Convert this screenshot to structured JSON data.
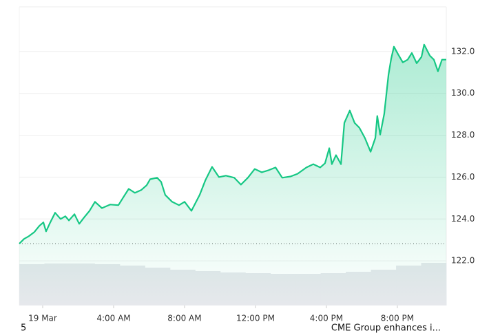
{
  "chart_data": {
    "type": "line",
    "x": [
      -1.32,
      -1.05,
      -0.78,
      -0.47,
      -0.19,
      0.04,
      0.19,
      0.39,
      0.7,
      1.01,
      1.28,
      1.48,
      1.79,
      2.06,
      2.33,
      2.64,
      2.95,
      3.34,
      3.81,
      4.27,
      4.58,
      4.85,
      5.2,
      5.55,
      5.86,
      6.06,
      6.45,
      6.68,
      6.91,
      7.3,
      7.69,
      8.0,
      8.39,
      8.85,
      9.17,
      9.55,
      9.94,
      10.33,
      10.8,
      11.18,
      11.57,
      11.96,
      12.35,
      12.74,
      13.13,
      13.51,
      13.98,
      14.37,
      14.87,
      15.26,
      15.65,
      15.92,
      16.16,
      16.31,
      16.54,
      16.82,
      17.01,
      17.32,
      17.59,
      17.86,
      18.17,
      18.49,
      18.76,
      18.87,
      19.03,
      19.26,
      19.5,
      19.65,
      19.81,
      20.04,
      20.31,
      20.58,
      20.82,
      21.09,
      21.36,
      21.51,
      21.83,
      22.06,
      22.29,
      22.52,
      22.76
    ],
    "series": [
      {
        "color": "#16c784",
        "values": [
          122.82,
          123.05,
          123.18,
          123.38,
          123.67,
          123.84,
          123.41,
          123.77,
          124.3,
          124.0,
          124.13,
          123.93,
          124.23,
          123.77,
          124.07,
          124.39,
          124.82,
          124.52,
          124.69,
          124.66,
          125.08,
          125.44,
          125.25,
          125.38,
          125.61,
          125.9,
          125.97,
          125.77,
          125.15,
          124.82,
          124.66,
          124.82,
          124.39,
          125.15,
          125.84,
          126.49,
          126.0,
          126.07,
          125.97,
          125.64,
          125.97,
          126.39,
          126.23,
          126.33,
          126.46,
          125.97,
          126.03,
          126.16,
          126.46,
          126.62,
          126.46,
          126.66,
          127.38,
          126.62,
          127.05,
          126.62,
          128.59,
          129.18,
          128.59,
          128.36,
          127.87,
          127.21,
          127.87,
          128.92,
          128.03,
          129.02,
          130.89,
          131.64,
          132.23,
          131.87,
          131.48,
          131.61,
          131.93,
          131.44,
          131.74,
          132.33,
          131.8,
          131.61,
          131.05,
          131.61,
          131.61
        ]
      }
    ],
    "reference_line": 122.82,
    "volume": {
      "color": "#e6e8ec",
      "values": [
        60,
        61,
        61,
        60,
        58,
        55,
        52,
        50,
        48,
        47,
        46,
        46,
        47,
        49,
        52,
        58,
        62
      ]
    },
    "xlim": [
      -1.32,
      22.76
    ],
    "xticks": [
      {
        "value": 0,
        "label": "19 Mar"
      },
      {
        "value": 4,
        "label": "4:00 AM"
      },
      {
        "value": 8,
        "label": "8:00 AM"
      },
      {
        "value": 12,
        "label": "12:00 PM"
      },
      {
        "value": 16,
        "label": "4:00 PM"
      },
      {
        "value": 20,
        "label": "8:00 PM"
      }
    ],
    "ylim": [
      119.87,
      134.13
    ],
    "yticks": [
      {
        "value": 122,
        "label": "122.0"
      },
      {
        "value": 124,
        "label": "124.0"
      },
      {
        "value": 126,
        "label": "126.0"
      },
      {
        "value": 128,
        "label": "128.0"
      },
      {
        "value": 130,
        "label": "130.0"
      },
      {
        "value": 132,
        "label": "132.0"
      }
    ],
    "grid": true
  },
  "footer": {
    "page": "5",
    "news": "CME Group enhances i..."
  }
}
